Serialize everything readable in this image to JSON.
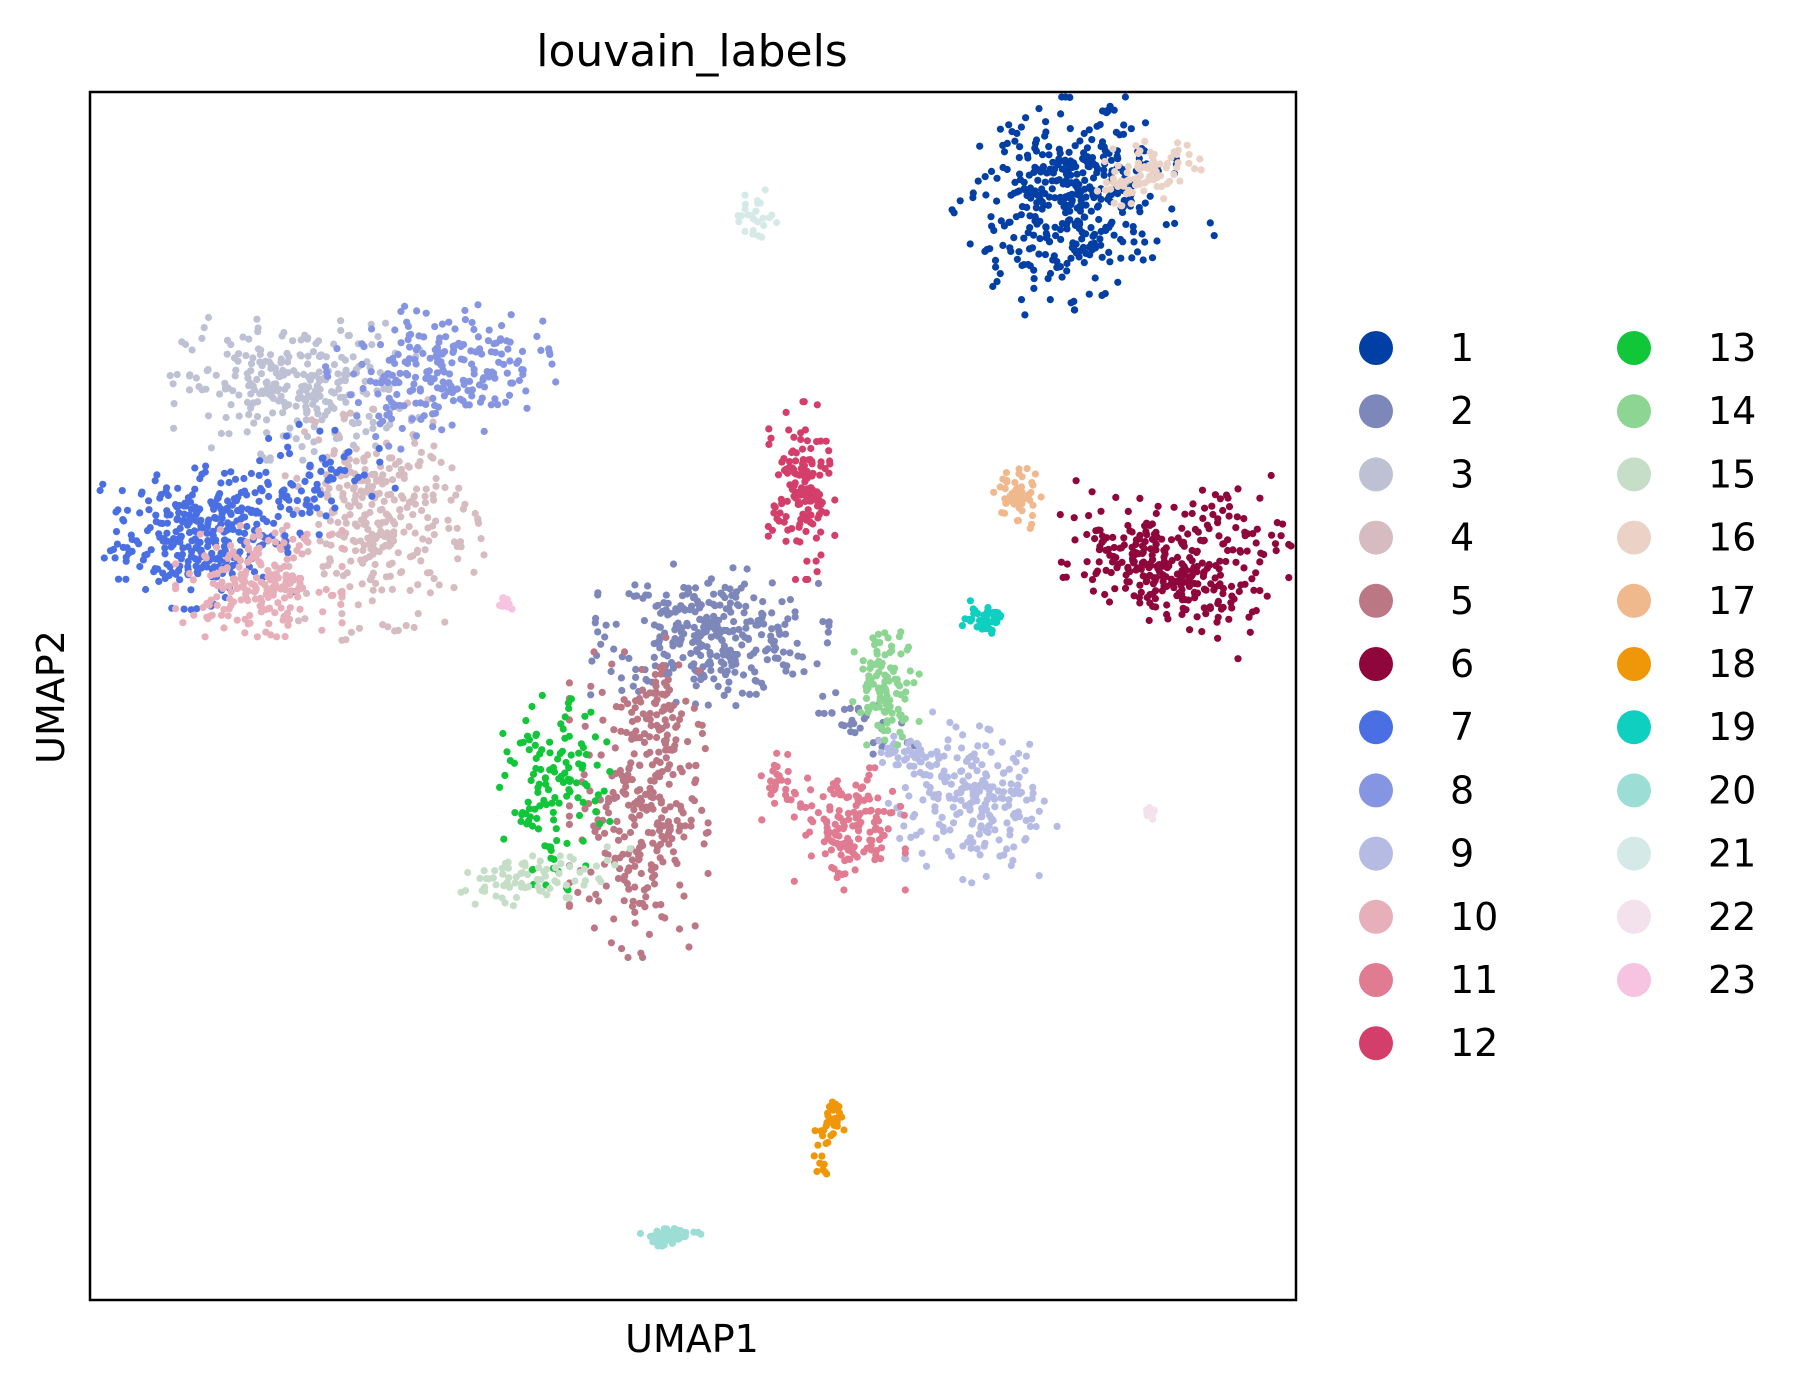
{
  "chart_data": {
    "type": "scatter",
    "title": "louvain_labels",
    "xlabel": "UMAP1",
    "ylabel": "UMAP2",
    "xlim": [
      0,
      100
    ],
    "ylim": [
      0,
      100
    ],
    "grid": false,
    "x_ticks": [],
    "y_ticks": [],
    "legend": {
      "placement": "right-outside",
      "columns": 2
    },
    "series": [
      {
        "name": "1",
        "color": "#023fa5",
        "clusters": [
          {
            "x": 81.5,
            "y": 91.0,
            "sx": 4.0,
            "sy": 3.5,
            "n": 420,
            "tilt": 28
          }
        ]
      },
      {
        "name": "2",
        "color": "#7d87b9",
        "clusters": [
          {
            "x": 51.5,
            "y": 55.0,
            "sx": 4.2,
            "sy": 2.5,
            "n": 320,
            "tilt": -5
          },
          {
            "x": 63.0,
            "y": 48.0,
            "sx": 2.5,
            "sy": 0.9,
            "n": 30,
            "tilt": -25
          }
        ]
      },
      {
        "name": "3",
        "color": "#bec1d4",
        "clusters": [
          {
            "x": 17.0,
            "y": 75.5,
            "sx": 4.5,
            "sy": 2.6,
            "n": 280,
            "tilt": 0
          }
        ]
      },
      {
        "name": "4",
        "color": "#d6bcc0",
        "clusters": [
          {
            "x": 24.0,
            "y": 64.5,
            "sx": 3.5,
            "sy": 4.0,
            "n": 320,
            "tilt": 10
          }
        ]
      },
      {
        "name": "5",
        "color": "#bb7784",
        "clusters": [
          {
            "x": 45.5,
            "y": 41.0,
            "sx": 2.5,
            "sy": 5.5,
            "n": 300,
            "tilt": 0
          },
          {
            "x": 47.5,
            "y": 48.5,
            "sx": 0.6,
            "sy": 3.0,
            "n": 40,
            "tilt": 0
          }
        ]
      },
      {
        "name": "6",
        "color": "#8e063b",
        "clusters": [
          {
            "x": 88.5,
            "y": 60.5,
            "sx": 4.0,
            "sy": 1.8,
            "n": 230,
            "tilt": -25
          },
          {
            "x": 93.5,
            "y": 62.5,
            "sx": 2.8,
            "sy": 2.5,
            "n": 110,
            "tilt": 0
          }
        ]
      },
      {
        "name": "7",
        "color": "#4a6fe3",
        "clusters": [
          {
            "x": 8.5,
            "y": 63.0,
            "sx": 3.3,
            "sy": 2.5,
            "n": 300,
            "tilt": 10
          },
          {
            "x": 17.0,
            "y": 67.5,
            "sx": 3.3,
            "sy": 2.0,
            "n": 100,
            "tilt": 22
          }
        ]
      },
      {
        "name": "8",
        "color": "#8595e1",
        "clusters": [
          {
            "x": 29.0,
            "y": 77.0,
            "sx": 4.0,
            "sy": 2.5,
            "n": 230,
            "tilt": 12
          }
        ]
      },
      {
        "name": "9",
        "color": "#b5bbe3",
        "clusters": [
          {
            "x": 73.5,
            "y": 41.0,
            "sx": 3.0,
            "sy": 2.7,
            "n": 220,
            "tilt": -20
          },
          {
            "x": 67.5,
            "y": 45.0,
            "sx": 1.2,
            "sy": 1.0,
            "n": 40,
            "tilt": 0
          }
        ]
      },
      {
        "name": "10",
        "color": "#e6afb9",
        "clusters": [
          {
            "x": 14.0,
            "y": 59.5,
            "sx": 3.0,
            "sy": 2.0,
            "n": 210,
            "tilt": 0
          }
        ]
      },
      {
        "name": "11",
        "color": "#e07b91",
        "clusters": [
          {
            "x": 63.0,
            "y": 39.0,
            "sx": 2.0,
            "sy": 2.2,
            "n": 150,
            "tilt": 0
          },
          {
            "x": 57.5,
            "y": 42.5,
            "sx": 0.8,
            "sy": 1.2,
            "n": 30,
            "tilt": 0
          }
        ]
      },
      {
        "name": "12",
        "color": "#d33f6a",
        "clusters": [
          {
            "x": 59.0,
            "y": 67.0,
            "sx": 1.2,
            "sy": 3.2,
            "n": 150,
            "tilt": 0
          }
        ]
      },
      {
        "name": "13",
        "color": "#11c638",
        "clusters": [
          {
            "x": 38.5,
            "y": 42.0,
            "sx": 2.0,
            "sy": 3.5,
            "n": 130,
            "tilt": 0
          }
        ]
      },
      {
        "name": "14",
        "color": "#8dd593",
        "clusters": [
          {
            "x": 66.0,
            "y": 51.0,
            "sx": 1.2,
            "sy": 2.2,
            "n": 110,
            "tilt": 0
          }
        ]
      },
      {
        "name": "15",
        "color": "#c6dec7",
        "clusters": [
          {
            "x": 37.0,
            "y": 35.0,
            "sx": 3.5,
            "sy": 0.9,
            "n": 80,
            "tilt": 8
          }
        ]
      },
      {
        "name": "16",
        "color": "#ead3c6",
        "clusters": [
          {
            "x": 87.5,
            "y": 93.5,
            "sx": 2.0,
            "sy": 1.2,
            "n": 90,
            "tilt": 25
          }
        ]
      },
      {
        "name": "17",
        "color": "#f0b98d",
        "clusters": [
          {
            "x": 77.0,
            "y": 66.5,
            "sx": 0.9,
            "sy": 1.2,
            "n": 50,
            "tilt": 0
          }
        ]
      },
      {
        "name": "18",
        "color": "#ef9708",
        "clusters": [
          {
            "x": 61.5,
            "y": 14.7,
            "sx": 0.5,
            "sy": 1.2,
            "n": 30,
            "tilt": -15
          },
          {
            "x": 60.6,
            "y": 11.3,
            "sx": 0.3,
            "sy": 0.4,
            "n": 8,
            "tilt": 0
          }
        ]
      },
      {
        "name": "19",
        "color": "#0fcfc0",
        "clusters": [
          {
            "x": 74.0,
            "y": 56.5,
            "sx": 0.8,
            "sy": 0.6,
            "n": 40,
            "tilt": 0
          }
        ]
      },
      {
        "name": "20",
        "color": "#9cded6",
        "clusters": [
          {
            "x": 48.0,
            "y": 5.3,
            "sx": 1.2,
            "sy": 0.4,
            "n": 45,
            "tilt": 0
          }
        ]
      },
      {
        "name": "21",
        "color": "#d5eae7",
        "clusters": [
          {
            "x": 55.0,
            "y": 89.5,
            "sx": 1.0,
            "sy": 0.9,
            "n": 25,
            "tilt": 40
          }
        ]
      },
      {
        "name": "22",
        "color": "#f3e1eb",
        "clusters": [
          {
            "x": 88.0,
            "y": 40.5,
            "sx": 0.3,
            "sy": 0.3,
            "n": 10,
            "tilt": 0
          }
        ]
      },
      {
        "name": "23",
        "color": "#f6c4e1",
        "clusters": [
          {
            "x": 34.0,
            "y": 57.5,
            "sx": 0.5,
            "sy": 0.3,
            "n": 15,
            "tilt": 0
          }
        ]
      }
    ]
  }
}
